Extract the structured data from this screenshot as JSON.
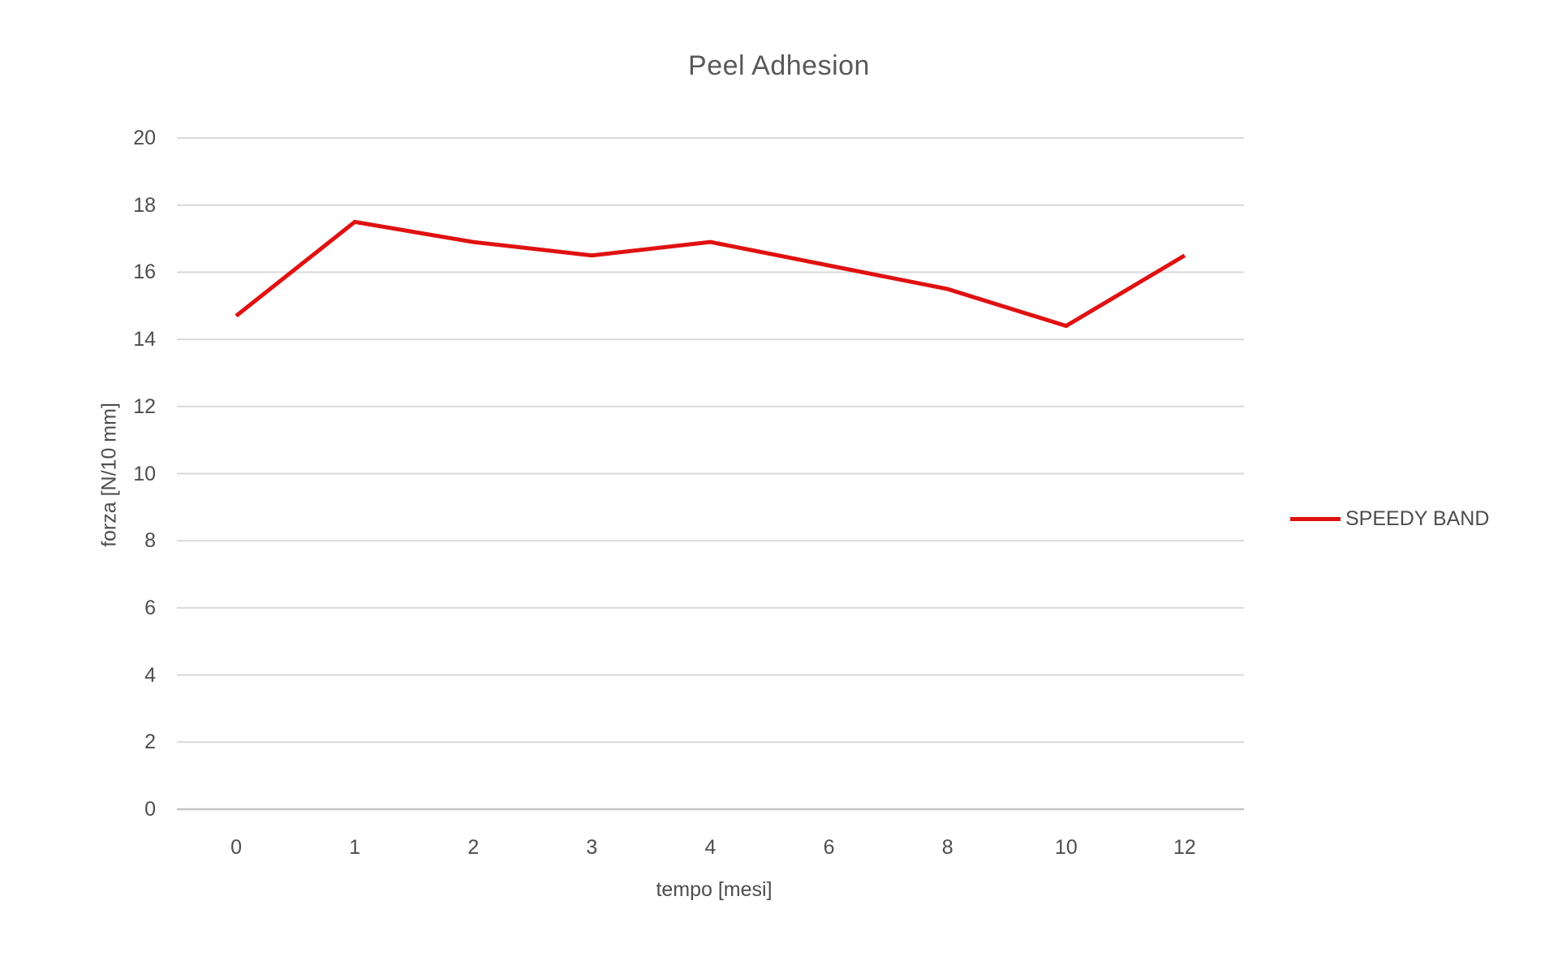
{
  "chart_data": {
    "type": "line",
    "title": "Peel Adhesion",
    "xlabel": "tempo [mesi]",
    "ylabel": "forza [N/10 mm]",
    "categories": [
      "0",
      "1",
      "2",
      "3",
      "4",
      "6",
      "8",
      "10",
      "12"
    ],
    "series": [
      {
        "name": "SPEEDY BAND",
        "color": "#e01111",
        "values": [
          14.7,
          17.5,
          16.9,
          16.5,
          16.9,
          16.2,
          15.5,
          14.4,
          16.5
        ]
      }
    ],
    "ylim": [
      0,
      20
    ],
    "ytick_step": 2,
    "yticks": [
      0,
      2,
      4,
      6,
      8,
      10,
      12,
      14,
      16,
      18,
      20
    ],
    "grid": "horizontal-only",
    "legend_position": "right",
    "colors": {
      "gridline": "#d9d9d9",
      "zero_axis_line": "#c3c3c3",
      "tick_text": "#4d4d4d",
      "title_text": "#595959",
      "background": "#ffffff"
    }
  }
}
